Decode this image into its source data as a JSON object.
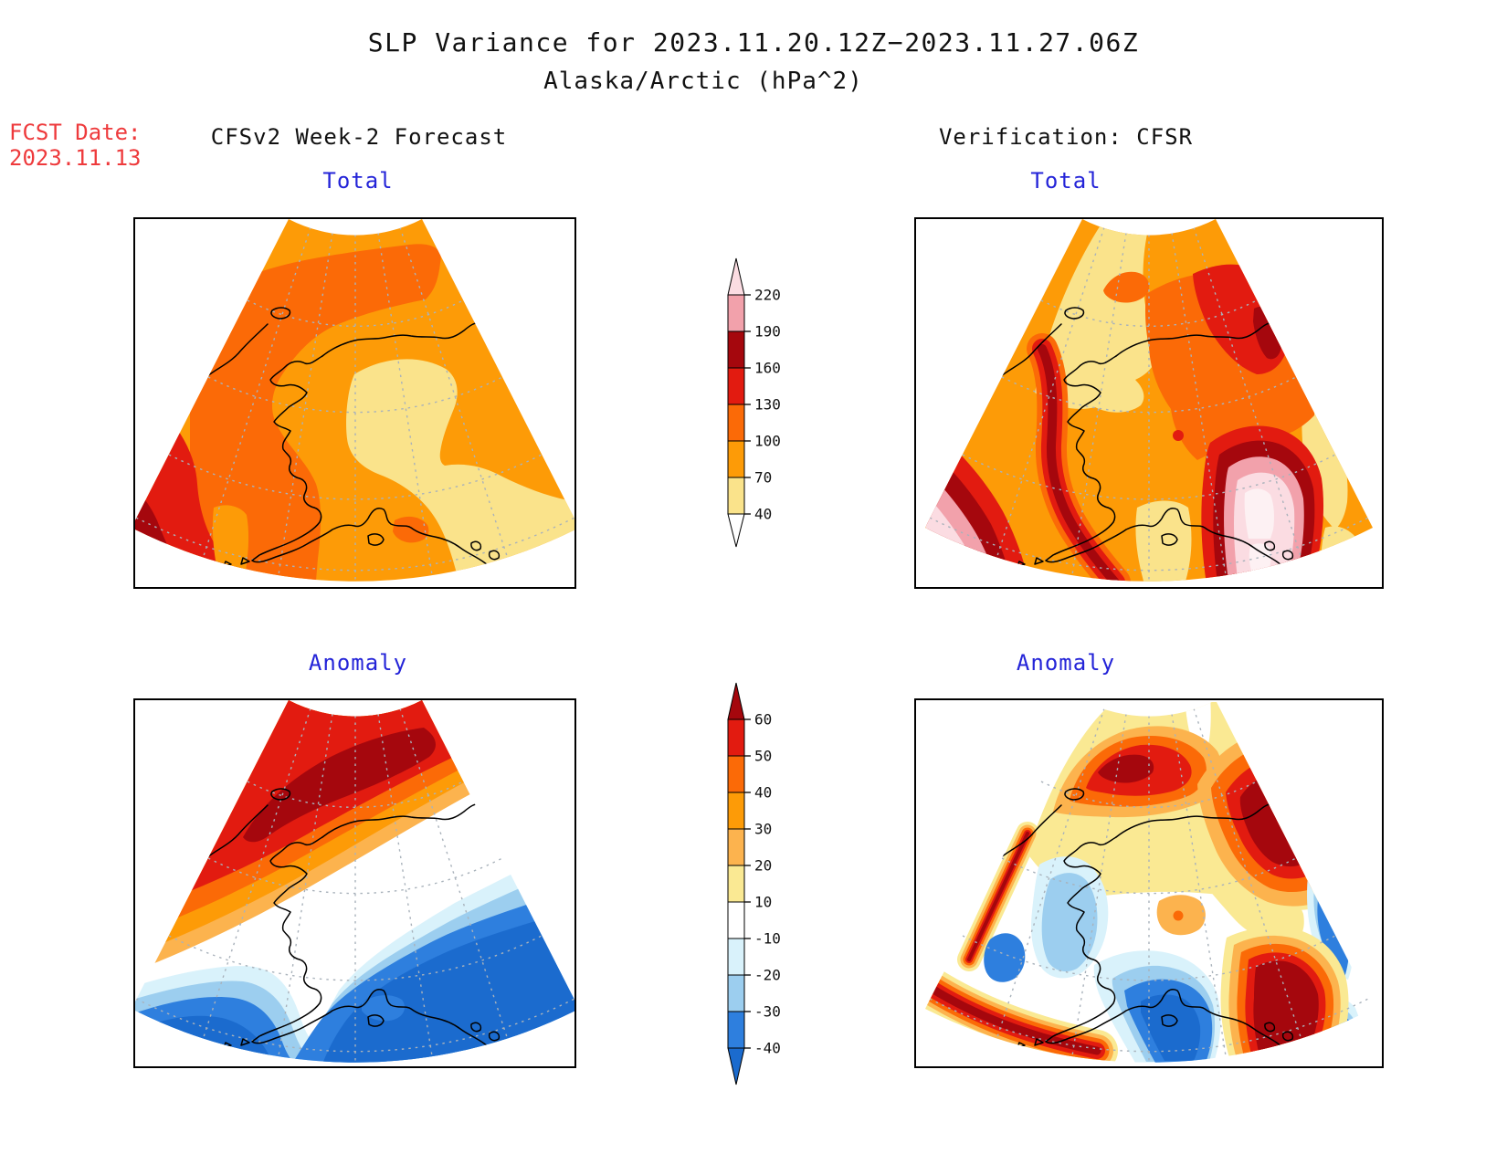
{
  "title": {
    "line1": "SLP Variance for 2023.11.20.12Z−2023.11.27.06Z",
    "line2": "Alaska/Arctic (hPa^2)"
  },
  "fcst_date": {
    "label": "FCST Date:",
    "value": "2023.11.13",
    "color": "#EE3A3C"
  },
  "columns": {
    "left": "CFSv2 Week-2 Forecast",
    "right": "Verification: CFSR"
  },
  "panels": [
    {
      "id": "forecast-total",
      "title": "Total"
    },
    {
      "id": "verification-total",
      "title": "Total"
    },
    {
      "id": "forecast-anomaly",
      "title": "Anomaly"
    },
    {
      "id": "verification-anomaly",
      "title": "Anomaly"
    }
  ],
  "panel_title_color": "#2424D8",
  "colorbars": {
    "total": {
      "ticks": [
        "220",
        "190",
        "160",
        "130",
        "100",
        "70",
        "40"
      ],
      "pieces": [
        "#FBDCE2",
        "#F2A1AB",
        "#A5070D",
        "#E21B10",
        "#FB6A07",
        "#FD9B07",
        "#FAE38B",
        "#FFFFFF"
      ]
    },
    "anomaly": {
      "ticks": [
        "60",
        "50",
        "40",
        "30",
        "20",
        "10",
        "-10",
        "-20",
        "-30",
        "-40"
      ],
      "pieces": [
        "#A5070D",
        "#E21B10",
        "#FB6A07",
        "#FD9B07",
        "#FCB34E",
        "#FAE993",
        "#FFFFFF",
        "#D9F2FB",
        "#9CCEEF",
        "#2E7FDE",
        "#1B6BCE"
      ]
    }
  },
  "chart_data": {
    "type": "heatmap",
    "subtype": "filled-contour polar-stereographic maps (2x2 panel)",
    "title": "SLP Variance for 2023.11.20.12Z−2023.11.27.06Z",
    "subtitle": "Alaska/Arctic (hPa^2)",
    "units": "hPa^2",
    "forecast_date": "2023.11.13",
    "columns": [
      "CFSv2 Week-2 Forecast",
      "Verification: CFSR"
    ],
    "rows": [
      "Total",
      "Anomaly"
    ],
    "total_scale": {
      "levels": [
        40,
        70,
        100,
        130,
        160,
        190,
        220
      ],
      "colors_low_to_high": [
        "#FFFFFF",
        "#FAE38B",
        "#FD9B07",
        "#FB6A07",
        "#E21B10",
        "#A5070D",
        "#F2A1AB",
        "#FBDCE2"
      ]
    },
    "anomaly_scale": {
      "levels": [
        -40,
        -30,
        -20,
        -10,
        10,
        20,
        30,
        40,
        50,
        60
      ],
      "colors_low_to_high": [
        "#1B6BCE",
        "#2E7FDE",
        "#9CCEEF",
        "#D9F2FB",
        "#FFFFFF",
        "#FAE993",
        "#FCB34E",
        "#FD9B07",
        "#FB6A07",
        "#E21B10",
        "#A5070D"
      ]
    },
    "panel_summaries": [
      {
        "panel": "CFSv2 Week-2 Forecast / Total",
        "summary": "Mostly 70-130 hPa^2; 40-70 minimum over interior and south-central Alaska; 100-130 band across the north; 130-160 rising to 160-190 in the far southwest (Bering Sea) corner."
      },
      {
        "panel": "Verification: CFSR / Total",
        "summary": "40-70 over Chukchi/northwest; 100-160 over the east; 160-220+ arcs in the southwest corner and a closed >220 maximum south of the Alaska Peninsula / Gulf of Alaska."
      },
      {
        "panel": "CFSv2 Week-2 Forecast / Anomaly",
        "summary": "Positive anomaly with >+60 core over the Arctic/Beaufort in the northwest, grading through 0 near the west coast to -30 to <-40 over the Bering Sea and Gulf of Alaska."
      },
      {
        "panel": "Verification: CFSR / Anomaly",
        "summary": "Mixed: >+60 cores along the Arctic coast and east Beaufort, >+60 south of the Alaska Peninsula and along the southwest edge; -30 to <-40 centers over Bristol Bay/Gulf and the southeast corner."
      }
    ]
  },
  "map_colors": {
    "coastline": "#000000",
    "graticule": "#A9B2BB"
  }
}
